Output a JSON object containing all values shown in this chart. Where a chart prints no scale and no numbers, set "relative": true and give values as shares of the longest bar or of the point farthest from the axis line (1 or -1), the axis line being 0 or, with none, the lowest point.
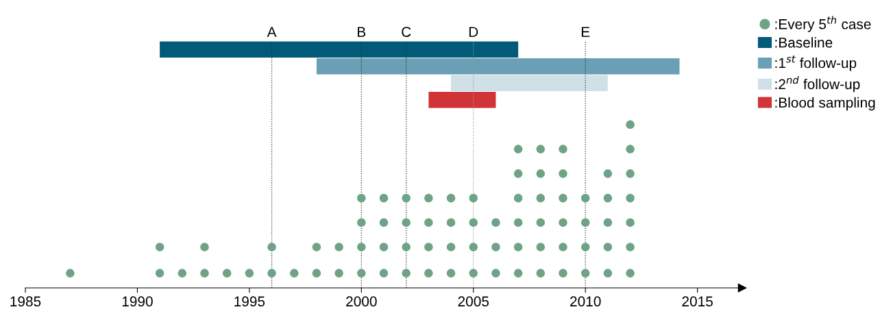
{
  "chart_data": [
    {
      "type": "bar",
      "orientation": "horizontal",
      "categories": [
        ":Baseline",
        ":1$^{st}$ follow-up",
        ":2$^{nd}$ follow-up",
        ":Blood sampling"
      ],
      "xticks": [
        1985,
        1990,
        1995,
        2000,
        2005,
        2010,
        2015
      ],
      "tick_labels": false,
      "legend": "top right",
      "base": [
        1991,
        1998,
        2004,
        2003
      ],
      "values": [
        16,
        16.2,
        7,
        3
      ],
      "colors": [
        "#005a78",
        "#6a9fb5",
        "#cfe0e6",
        "#d13438"
      ],
      "ref_lines": [
        {
          "axis": "x",
          "value": 1996,
          "label": "A",
          "color": "#333333",
          "line_style": "dotted"
        },
        {
          "axis": "x",
          "value": 2000,
          "label": "B",
          "color": "#333333",
          "line_style": "dotted"
        },
        {
          "axis": "x",
          "value": 2002,
          "label": "C",
          "color": "#333333",
          "line_style": "dotted"
        },
        {
          "axis": "x",
          "value": 2005,
          "label": "D",
          "color": "#999999",
          "line_style": "dotted"
        },
        {
          "axis": "x",
          "value": 2010,
          "label": "E",
          "color": "#333333",
          "line_style": "dotted"
        }
      ]
    },
    {
      "type": "scatter",
      "relative": true,
      "xlim": [
        1985,
        2017
      ],
      "xticks": [
        1985,
        1990,
        1995,
        2000,
        2005,
        2010,
        2015
      ],
      "tick_labels": "x",
      "legend": "top right",
      "marker": "circle",
      "series": [
        {
          "name": ":Every 5$^{th}$ case",
          "color": "#6fa386",
          "x": [
            1987,
            1991,
            1991,
            1992,
            1993,
            1993,
            1994,
            1995,
            1996,
            1996,
            1997,
            1998,
            1998,
            1999,
            1999,
            2000,
            2000,
            2000,
            2000,
            2001,
            2001,
            2001,
            2001,
            2002,
            2002,
            2002,
            2002,
            2003,
            2003,
            2003,
            2003,
            2004,
            2004,
            2004,
            2004,
            2005,
            2005,
            2005,
            2005,
            2006,
            2006,
            2006,
            2007,
            2007,
            2007,
            2007,
            2007,
            2007,
            2008,
            2008,
            2008,
            2008,
            2008,
            2008,
            2009,
            2009,
            2009,
            2009,
            2009,
            2009,
            2010,
            2010,
            2010,
            2010,
            2011,
            2011,
            2011,
            2011,
            2011,
            2012,
            2012,
            2012,
            2012,
            2012,
            2012,
            2012
          ],
          "values": [
            0.09,
            0.09,
            0.25,
            0.09,
            0.09,
            0.25,
            0.09,
            0.09,
            0.09,
            0.25,
            0.09,
            0.09,
            0.25,
            0.09,
            0.25,
            0.09,
            0.25,
            0.4,
            0.55,
            0.09,
            0.25,
            0.4,
            0.55,
            0.09,
            0.25,
            0.4,
            0.55,
            0.09,
            0.25,
            0.4,
            0.55,
            0.09,
            0.25,
            0.4,
            0.55,
            0.09,
            0.25,
            0.4,
            0.55,
            0.09,
            0.25,
            0.4,
            0.09,
            0.25,
            0.4,
            0.55,
            0.7,
            0.85,
            0.09,
            0.25,
            0.4,
            0.55,
            0.7,
            0.85,
            0.09,
            0.25,
            0.4,
            0.55,
            0.7,
            0.85,
            0.09,
            0.25,
            0.4,
            0.55,
            0.09,
            0.25,
            0.4,
            0.55,
            0.7,
            0.09,
            0.25,
            0.4,
            0.55,
            0.7,
            0.85,
            1
          ]
        }
      ]
    }
  ]
}
